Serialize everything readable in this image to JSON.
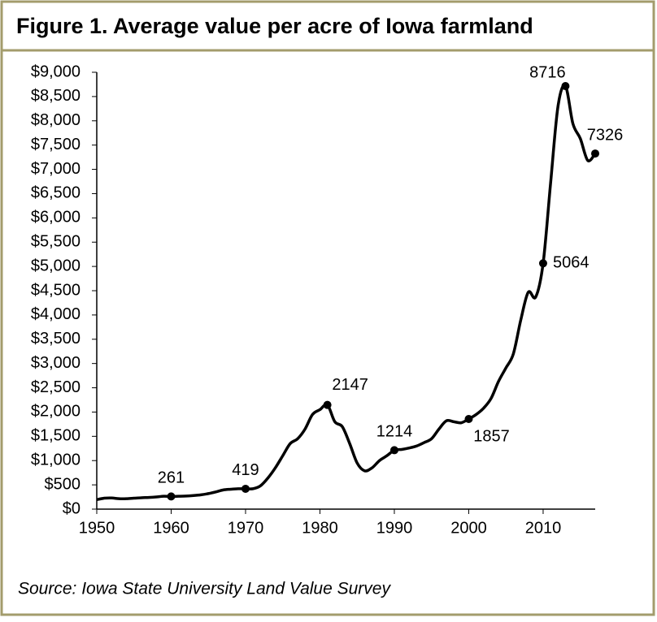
{
  "chart_data": {
    "type": "line",
    "title": "Figure 1. Average value per acre of Iowa farmland",
    "source": "Source: Iowa State University Land Value Survey",
    "x": [
      1950,
      1951,
      1952,
      1953,
      1954,
      1955,
      1956,
      1957,
      1958,
      1959,
      1960,
      1961,
      1962,
      1963,
      1964,
      1965,
      1966,
      1967,
      1968,
      1969,
      1970,
      1971,
      1972,
      1973,
      1974,
      1975,
      1976,
      1977,
      1978,
      1979,
      1980,
      1981,
      1982,
      1983,
      1984,
      1985,
      1986,
      1987,
      1988,
      1989,
      1990,
      1991,
      1992,
      1993,
      1994,
      1995,
      1996,
      1997,
      1998,
      1999,
      2000,
      2001,
      2002,
      2003,
      2004,
      2005,
      2006,
      2007,
      2008,
      2009,
      2010,
      2011,
      2012,
      2013,
      2014,
      2015,
      2016,
      2017
    ],
    "series": [
      {
        "color": "#000000",
        "values": [
          195,
          225,
          230,
          215,
          215,
          225,
          235,
          240,
          250,
          265,
          261,
          265,
          270,
          280,
          295,
          320,
          355,
          395,
          410,
          420,
          419,
          420,
          480,
          640,
          850,
          1100,
          1350,
          1450,
          1650,
          1950,
          2050,
          2147,
          1800,
          1700,
          1350,
          950,
          790,
          850,
          1000,
          1100,
          1214,
          1230,
          1260,
          1300,
          1370,
          1450,
          1650,
          1820,
          1800,
          1780,
          1857,
          1950,
          2080,
          2280,
          2630,
          2910,
          3200,
          3900,
          4470,
          4370,
          5064,
          6710,
          8300,
          8716,
          7943,
          7633,
          7183,
          7326
        ]
      }
    ],
    "marked_x": [
      1960,
      1970,
      1981,
      1990,
      2000,
      2010,
      2013,
      2017
    ],
    "xlim": [
      1950,
      2017
    ],
    "xticks": [
      1950,
      1960,
      1970,
      1980,
      1990,
      2000,
      2010
    ],
    "ylim": [
      0,
      9000
    ],
    "yticks": [
      {
        "value": 0,
        "label": "$0"
      },
      {
        "value": 500,
        "label": "$500"
      },
      {
        "value": 1000,
        "label": "$1,000"
      },
      {
        "value": 1500,
        "label": "$1,500"
      },
      {
        "value": 2000,
        "label": "$2,000"
      },
      {
        "value": 2500,
        "label": "$2,500"
      },
      {
        "value": 3000,
        "label": "$3,000"
      },
      {
        "value": 3500,
        "label": "$3,500"
      },
      {
        "value": 4000,
        "label": "$4,000"
      },
      {
        "value": 4500,
        "label": "$4,500"
      },
      {
        "value": 5000,
        "label": "$5,000"
      },
      {
        "value": 5500,
        "label": "$5,500"
      },
      {
        "value": 6000,
        "label": "$6,000"
      },
      {
        "value": 6500,
        "label": "$6,500"
      },
      {
        "value": 7000,
        "label": "$7,000"
      },
      {
        "value": 7500,
        "label": "$7,500"
      },
      {
        "value": 8000,
        "label": "$8,000"
      },
      {
        "value": 8500,
        "label": "$8,500"
      },
      {
        "value": 9000,
        "label": "$9,000"
      }
    ]
  }
}
